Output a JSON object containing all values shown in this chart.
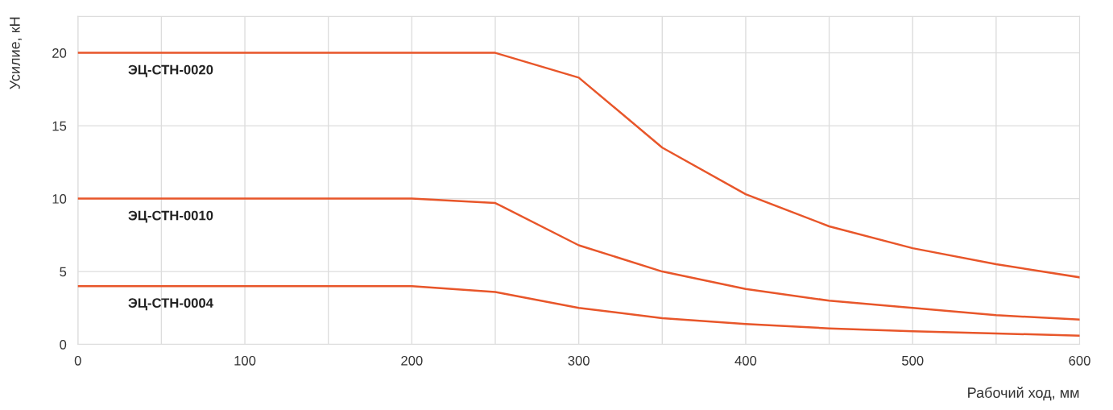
{
  "chart_data": {
    "type": "line",
    "xlabel": "Рабочий ход, мм",
    "ylabel": "Усилие, кН",
    "xlim": [
      0,
      600
    ],
    "ylim": [
      0,
      22.5
    ],
    "xticks": [
      0,
      {
        "value": 50,
        "label": null
      },
      100,
      {
        "value": 150,
        "label": null
      },
      200,
      {
        "value": 250,
        "label": null
      },
      300,
      {
        "value": 350,
        "label": null
      },
      400,
      {
        "value": 450,
        "label": null
      },
      500,
      {
        "value": 550,
        "label": null
      },
      600
    ],
    "yticks": [
      0,
      5,
      10,
      15,
      20
    ],
    "grid": true,
    "legend": false,
    "marker": "none",
    "line_style": "solid",
    "series": [
      {
        "name": "ЭЦ-СТН-0020",
        "color": "#e8562a",
        "x": [
          0,
          250,
          300,
          350,
          400,
          450,
          500,
          550,
          600
        ],
        "values": [
          20,
          20,
          18.3,
          13.5,
          10.3,
          8.1,
          6.6,
          5.5,
          4.6
        ]
      },
      {
        "name": "ЭЦ-СТН-0010",
        "color": "#e8562a",
        "x": [
          0,
          200,
          250,
          300,
          350,
          400,
          450,
          500,
          550,
          600
        ],
        "values": [
          10,
          10,
          9.7,
          6.8,
          5.0,
          3.8,
          3.0,
          2.5,
          2.0,
          1.7
        ]
      },
      {
        "name": "ЭЦ-СТН-0004",
        "color": "#e8562a",
        "x": [
          0,
          200,
          250,
          300,
          350,
          400,
          450,
          500,
          550,
          600
        ],
        "values": [
          4,
          4,
          3.6,
          2.5,
          1.8,
          1.4,
          1.1,
          0.9,
          0.75,
          0.6
        ]
      }
    ]
  }
}
